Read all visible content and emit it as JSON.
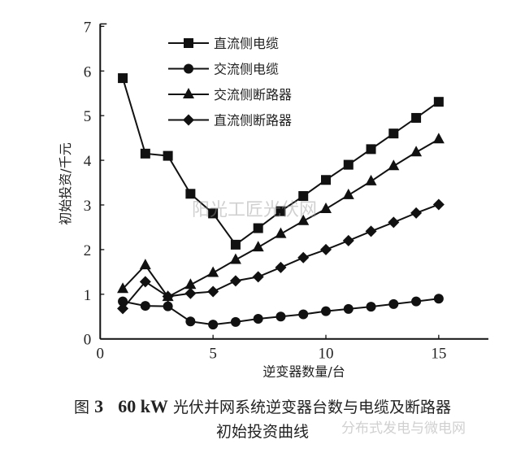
{
  "chart_data": {
    "type": "line",
    "title": "",
    "xlabel": "逆变器数量/台",
    "ylabel": "初始投资/千元",
    "xlim": [
      0,
      17.2
    ],
    "ylim": [
      0,
      7
    ],
    "xticks": [
      0,
      5,
      10,
      15
    ],
    "yticks": [
      0,
      1,
      2,
      3,
      4,
      5,
      6,
      7
    ],
    "grid": false,
    "legend_position": "top-left",
    "x": [
      1,
      2,
      3,
      4,
      5,
      6,
      7,
      8,
      9,
      10,
      11,
      12,
      13,
      14,
      15
    ],
    "series": [
      {
        "name": "直流侧电缆",
        "marker": "square",
        "values": [
          5.84,
          4.15,
          4.1,
          3.25,
          2.81,
          2.11,
          2.48,
          2.86,
          3.2,
          3.56,
          3.9,
          4.25,
          4.6,
          4.95,
          5.31
        ]
      },
      {
        "name": "交流侧电缆",
        "marker": "circle",
        "values": [
          0.84,
          0.74,
          0.73,
          0.39,
          0.32,
          0.38,
          0.45,
          0.5,
          0.55,
          0.62,
          0.67,
          0.72,
          0.78,
          0.84,
          0.9
        ]
      },
      {
        "name": "交流侧断路器",
        "marker": "triangle",
        "values": [
          1.12,
          1.65,
          0.94,
          1.21,
          1.48,
          1.77,
          2.05,
          2.35,
          2.64,
          2.91,
          3.22,
          3.53,
          3.87,
          4.18,
          4.47
        ]
      },
      {
        "name": "直流侧断路器",
        "marker": "diamond",
        "values": [
          0.68,
          1.28,
          0.95,
          1.02,
          1.06,
          1.3,
          1.39,
          1.6,
          1.82,
          2.0,
          2.2,
          2.41,
          2.61,
          2.82,
          3.01
        ]
      }
    ]
  },
  "caption": {
    "fig": "图",
    "num": "3",
    "power": "60 kW",
    "line1": "光伏并网系统逆变器台数与电缆及断路器",
    "line2": "初始投资曲线"
  },
  "watermarks": {
    "center": "阳光工匠光伏网",
    "bottom": "分布式发电与微电网"
  }
}
